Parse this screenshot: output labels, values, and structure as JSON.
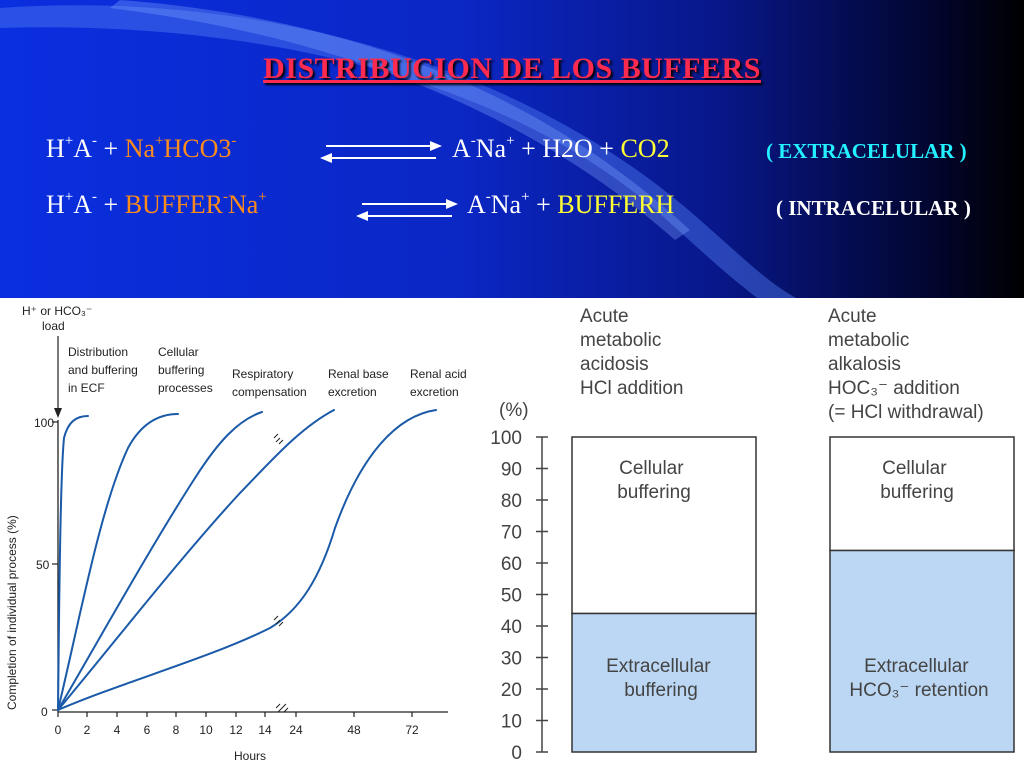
{
  "title": "DISTRIBUCION   DE  LOS  BUFFERS",
  "eq1": {
    "lhs_a": "H",
    "lhs_a_sup": "+",
    "lhs_b": "A",
    "lhs_b_sup": "-",
    "plus": "+",
    "reagent": "Na",
    "reagent_sup": "+",
    "reagent2": "HCO3",
    "reagent2_sup": "-",
    "rhs_a": "A",
    "rhs_a_sup": "-",
    "rhs_b": "Na",
    "rhs_b_sup": "+",
    "rhs_c": "+ H2O +",
    "rhs_d": "CO2",
    "label": "( EXTRACELULAR )"
  },
  "eq2": {
    "lhs_a": "H",
    "lhs_a_sup": "+",
    "lhs_b": "A",
    "lhs_b_sup": "-",
    "plus": "+",
    "reagent": "BUFFER",
    "reagent_sup": "-",
    "reagent2": "Na",
    "reagent2_sup": "+",
    "rhs_a": "A",
    "rhs_a_sup": "-",
    "rhs_b": "Na",
    "rhs_b_sup": "+",
    "rhs_c": "+",
    "rhs_d": "BUFFERH",
    "label": "( INTRACELULAR )"
  },
  "colors": {
    "title": "#ff2a4f",
    "orange": "#ff8c1a",
    "yellow": "#ffff33",
    "cyan": "#24f0ff",
    "curve": "#1a5aa8",
    "bar_fill": "#bcd7f3"
  },
  "left_chart": {
    "load_label_1": "H⁺ or HCO₃⁻",
    "load_label_2": "load",
    "ylabel": "Completion of individual process (%)",
    "xlabel": "Hours",
    "yticks": [
      "100",
      "50",
      "0"
    ],
    "xticks": [
      "0",
      "2",
      "4",
      "6",
      "8",
      "10",
      "12",
      "14",
      "24",
      "48",
      "72"
    ],
    "curve_labels": [
      [
        "Distribution",
        "and buffering",
        "in ECF"
      ],
      [
        "Cellular",
        "buffering",
        "processes"
      ],
      [
        "Respiratory",
        "compensation"
      ],
      [
        "Renal base",
        "excretion"
      ],
      [
        "Renal acid",
        "excretion"
      ]
    ]
  },
  "right_chart": {
    "unit": "(%)",
    "yticks": [
      "100",
      "90",
      "80",
      "70",
      "60",
      "50",
      "40",
      "30",
      "20",
      "10",
      "0"
    ],
    "bars": [
      {
        "header": [
          "Acute",
          "metabolic",
          "acidosis",
          "HCl addition"
        ],
        "top_label": [
          "Cellular",
          "buffering"
        ],
        "bottom_label": [
          "Extracellular",
          "buffering"
        ],
        "lower_percent": 44
      },
      {
        "header": [
          "Acute",
          "metabolic",
          "alkalosis",
          "HOC₃⁻ addition",
          "(= HCl withdrawal)"
        ],
        "top_label": [
          "Cellular",
          "buffering"
        ],
        "bottom_label": [
          "Extracellular",
          "HCO₃⁻ retention"
        ],
        "lower_percent": 64
      }
    ]
  }
}
